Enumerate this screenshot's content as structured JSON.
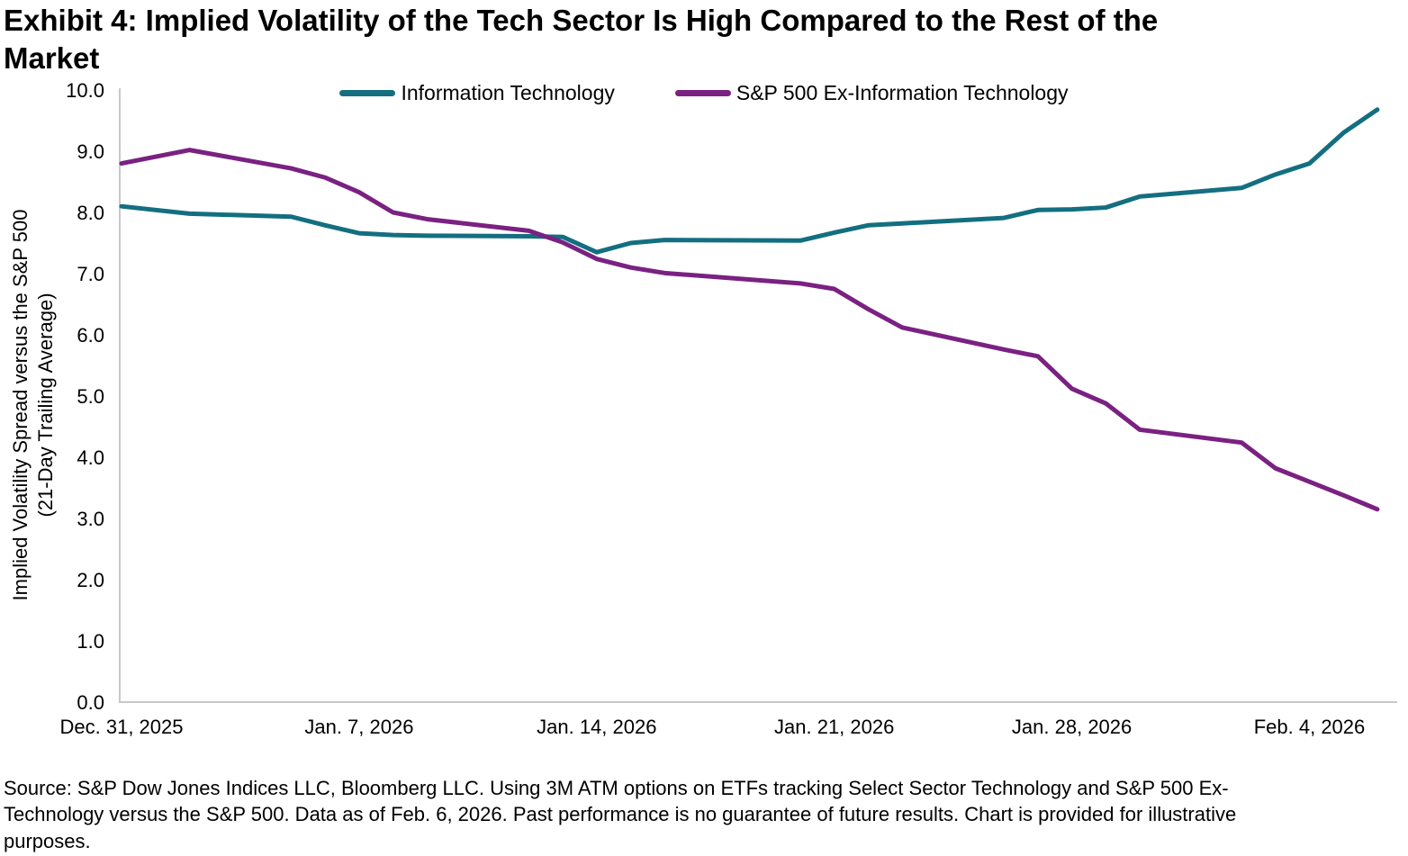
{
  "page": {
    "title_lines": [
      "Exhibit 4: Implied Volatility of the Tech Sector Is High Compared to the Rest of the",
      "Market"
    ],
    "source_lines": [
      "Source: S&P Dow Jones Indices LLC, Bloomberg LLC. Using 3M ATM options on ETFs tracking Select Sector Technology and S&P 500 Ex-",
      "Technology versus the S&P 500. Data as of Feb. 6, 2026. Past performance is no guarantee of future results. Chart is provided for illustrative",
      "purposes."
    ]
  },
  "colors": {
    "info_tech": "#136F80",
    "ex_info_tech": "#7A2182",
    "axis_line": "#C8C8C8",
    "text": "#000000",
    "background": "#FFFFFF"
  },
  "chart_data": {
    "type": "line",
    "title": "Exhibit 4: Implied Volatility of the Tech Sector Is High Compared to the Rest of the Market",
    "xlabel": "",
    "ylabel": "Implied Volatility Spread versus the S&P 500 (21-Day Trailing Average)",
    "ylabel_lines": [
      "Implied Volatility Spread versus the S&P 500",
      "(21-Day Trailing Average)"
    ],
    "ylim": [
      0,
      10
    ],
    "ytick_step": 1,
    "ytick_decimals": 1,
    "grid": false,
    "legend_position": "top",
    "x": [
      "Dec. 31, 2025",
      "Jan. 2, 2026",
      "Jan. 5, 2026",
      "Jan. 6, 2026",
      "Jan. 7, 2026",
      "Jan. 8, 2026",
      "Jan. 9, 2026",
      "Jan. 12, 2026",
      "Jan. 13, 2026",
      "Jan. 14, 2026",
      "Jan. 15, 2026",
      "Jan. 16, 2026",
      "Jan. 20, 2026",
      "Jan. 21, 2026",
      "Jan. 22, 2026",
      "Jan. 23, 2026",
      "Jan. 26, 2026",
      "Jan. 27, 2026",
      "Jan. 28, 2026",
      "Jan. 29, 2026",
      "Jan. 30, 2026",
      "Feb. 2, 2026",
      "Feb. 3, 2026",
      "Feb. 4, 2026",
      "Feb. 5, 2026",
      "Feb. 6, 2026"
    ],
    "day_offsets": [
      0,
      2,
      5,
      6,
      7,
      8,
      9,
      12,
      13,
      14,
      15,
      16,
      20,
      21,
      22,
      23,
      26,
      27,
      28,
      29,
      30,
      33,
      34,
      35,
      36,
      37
    ],
    "x_ticks": [
      {
        "label": "Dec. 31, 2025",
        "day": 0
      },
      {
        "label": "Jan. 7, 2026",
        "day": 7
      },
      {
        "label": "Jan. 14, 2026",
        "day": 14
      },
      {
        "label": "Jan. 21, 2026",
        "day": 21
      },
      {
        "label": "Jan. 28, 2026",
        "day": 28
      },
      {
        "label": "Feb. 4, 2026",
        "day": 35
      }
    ],
    "series": [
      {
        "name": "Information Technology",
        "color": "#136F80",
        "values": [
          8.1,
          7.98,
          7.93,
          7.79,
          7.66,
          7.63,
          7.62,
          7.61,
          7.6,
          7.35,
          7.5,
          7.55,
          7.54,
          7.67,
          7.79,
          7.82,
          7.91,
          8.04,
          8.05,
          8.08,
          8.26,
          8.4,
          8.62,
          8.8,
          9.3,
          9.68
        ]
      },
      {
        "name": "S&P 500 Ex-Information Technology",
        "color": "#7A2182",
        "values": [
          8.8,
          9.02,
          8.72,
          8.57,
          8.33,
          8.0,
          7.89,
          7.7,
          7.51,
          7.24,
          7.1,
          7.01,
          6.84,
          6.75,
          6.42,
          6.12,
          5.76,
          5.65,
          5.12,
          4.88,
          4.45,
          4.24,
          3.82,
          3.6,
          3.38,
          3.15
        ]
      }
    ]
  }
}
